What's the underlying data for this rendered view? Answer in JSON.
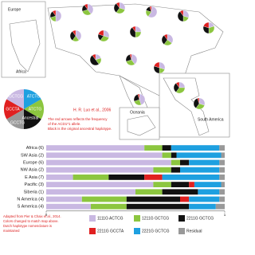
{
  "map": {
    "attribution": "H. R. Luo et al., 2006",
    "note_lines": [
      "The red arrows reflects the frequency",
      "of the ACD1*1 allele.",
      "Black is the original ancestral haplotype."
    ],
    "region_labels": [
      "Europe",
      "Africa",
      "South America",
      "Oceania"
    ],
    "legend_pie": {
      "labels": [
        "GCTCG",
        "ATCTG",
        "GCCTA",
        "ATCTG",
        "Ancestral",
        "GCCTG"
      ]
    }
  },
  "chart_data": [
    {
      "type": "pie",
      "colors": [
        "#c9b8e2",
        "#8cc63f",
        "#111111",
        "#e02020"
      ],
      "pies": [
        [
          50,
          20,
          20,
          10
        ],
        [
          40,
          30,
          20,
          10
        ],
        [
          30,
          30,
          30,
          10
        ],
        [
          60,
          20,
          15,
          5
        ],
        [
          30,
          20,
          40,
          10
        ],
        [
          20,
          30,
          30,
          20
        ],
        [
          40,
          20,
          30,
          10
        ],
        [
          30,
          30,
          20,
          20
        ],
        [
          25,
          25,
          40,
          10
        ],
        [
          35,
          25,
          30,
          10
        ],
        [
          20,
          20,
          50,
          10
        ],
        [
          40,
          30,
          25,
          5
        ],
        [
          30,
          20,
          30,
          20
        ],
        [
          45,
          25,
          25,
          5
        ],
        [
          25,
          35,
          30,
          10
        ],
        [
          30,
          30,
          35,
          5
        ]
      ]
    },
    {
      "type": "bar",
      "orientation": "horizontal",
      "stacked": true,
      "categories": [
        "Africa (6)",
        "SW Asia (2)",
        "Europe (6)",
        "NW Asia (2)",
        "E Asia (7)",
        "Pacific (3)",
        "Siberia (1)",
        "N America (4)",
        "S America (4)"
      ],
      "series": [
        {
          "name": "1111G ACTCG",
          "color": "#c9b8e2",
          "values": [
            0.55,
            0.65,
            0.7,
            0.6,
            0.15,
            0.6,
            0.5,
            0.2,
            0.25
          ]
        },
        {
          "name": "1211G GCTCG",
          "color": "#8cc63f",
          "values": [
            0.1,
            0.05,
            0.05,
            0.1,
            0.2,
            0.1,
            0.15,
            0.25,
            0.2
          ]
        },
        {
          "name": "2211G GCTCG",
          "color": "#111111",
          "values": [
            0.05,
            0.03,
            0.05,
            0.05,
            0.2,
            0.1,
            0.2,
            0.3,
            0.35
          ]
        },
        {
          "name": "2211G GCCTA",
          "color": "#e02020",
          "values": [
            0,
            0,
            0,
            0,
            0.1,
            0.03,
            0,
            0.05,
            0
          ]
        },
        {
          "name": "2221G GCTCG",
          "color": "#1ea0e0",
          "values": [
            0.27,
            0.25,
            0.17,
            0.22,
            0.32,
            0.15,
            0.12,
            0.17,
            0.15
          ]
        },
        {
          "name": "Residual",
          "color": "#999999",
          "values": [
            0.03,
            0.02,
            0.03,
            0.03,
            0.03,
            0.02,
            0.03,
            0.03,
            0.05
          ]
        }
      ],
      "xlim": [
        0,
        1
      ],
      "xticks": [
        0,
        1
      ],
      "caption_lines": [
        "Adapted from Pier & Chaix et al., 2014.",
        "Colors changed to match map above.",
        "Dutch haplotype nomenclature is",
        "maintained"
      ]
    }
  ]
}
